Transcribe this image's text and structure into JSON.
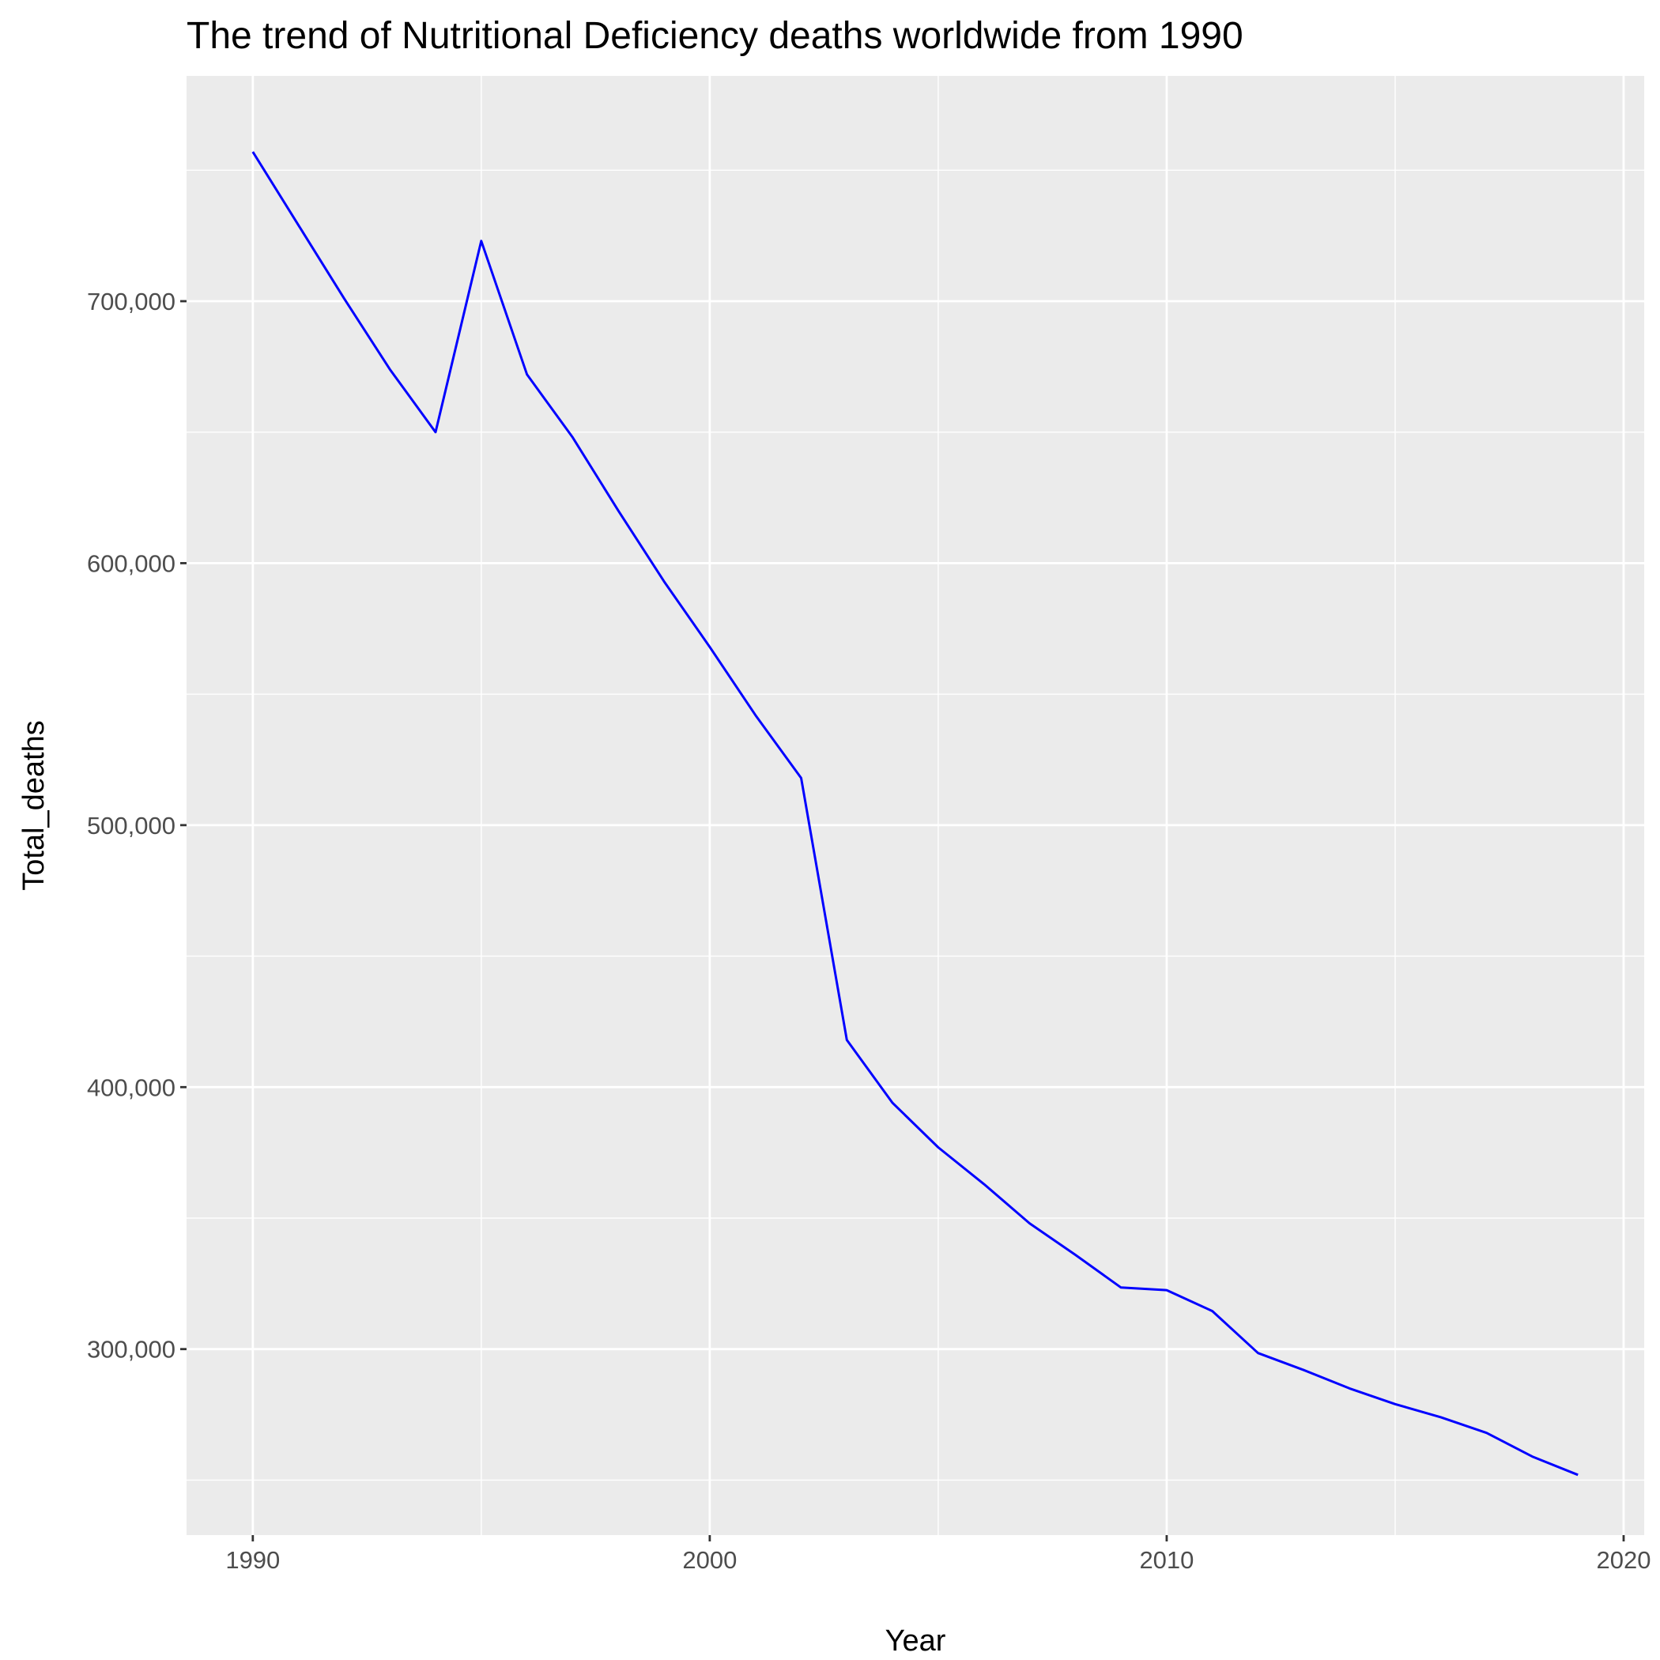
{
  "chart_data": {
    "type": "line",
    "title": "The trend of Nutritional Deficiency deaths worldwide from 1990",
    "xlabel": "Year",
    "ylabel": "Total_deaths",
    "x_ticks": [
      1990,
      2000,
      2010,
      2020
    ],
    "x_tick_labels": [
      "1990",
      "2000",
      "2010",
      "2020"
    ],
    "y_ticks": [
      300000,
      400000,
      500000,
      600000,
      700000
    ],
    "y_tick_labels": [
      "300,000",
      "400,000",
      "500,000",
      "600,000",
      "700,000"
    ],
    "xlim": [
      1988.55,
      2020.45
    ],
    "ylim": [
      229000,
      786000
    ],
    "grid": true,
    "background": "#EBEBEB",
    "grid_color": "#FFFFFF",
    "line_color": "#0000FF",
    "series": [
      {
        "x": [
          1990,
          1991,
          1992,
          1993,
          1994,
          1995,
          1996,
          1997,
          1998,
          1999,
          2000,
          2001,
          2002,
          2003,
          2004,
          2005,
          2006,
          2007,
          2008,
          2009,
          2010,
          2011,
          2012,
          2013,
          2014,
          2015,
          2016,
          2017,
          2018,
          2019
        ],
        "values": [
          757000,
          729000,
          701000,
          674000,
          650000,
          723000,
          672000,
          648000,
          620000,
          593000,
          568000,
          542000,
          518000,
          418000,
          394000,
          377000,
          363000,
          348000,
          336000,
          323500,
          322500,
          314500,
          298500,
          292000,
          285000,
          279000,
          274000,
          268000,
          259000,
          252000
        ]
      }
    ]
  }
}
